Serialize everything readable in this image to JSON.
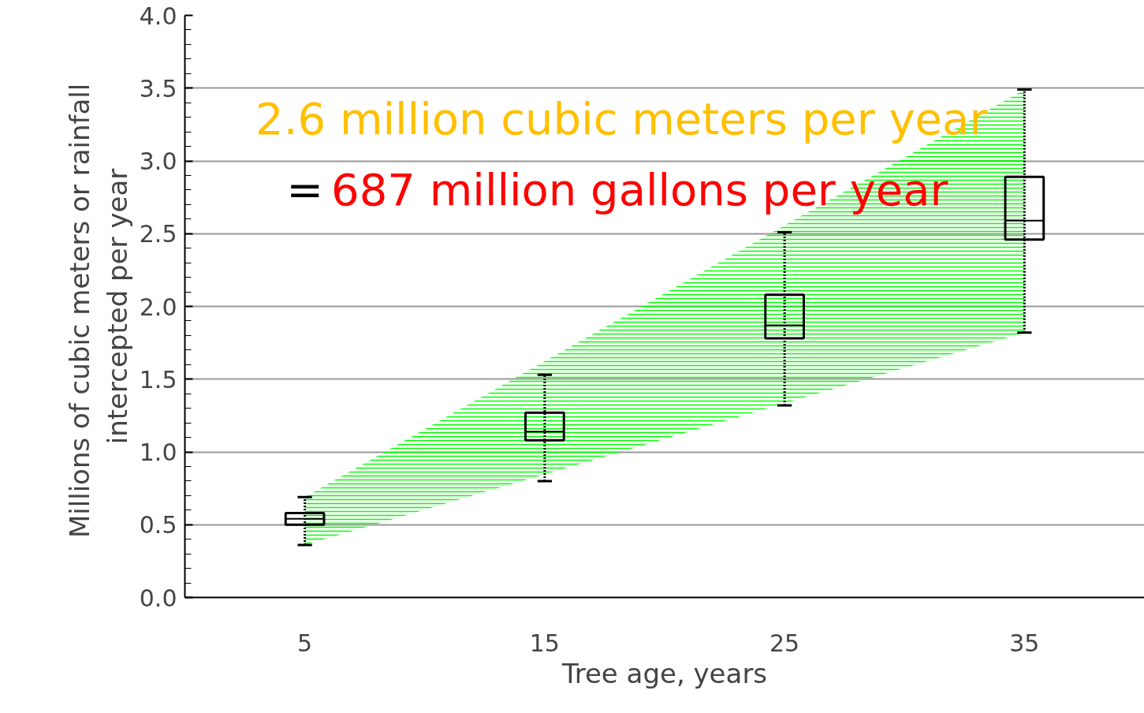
{
  "chart_data": {
    "type": "box",
    "xlabel": "Tree age, years",
    "ylabel": "Millions of cubic meters  or rainfall\nintercepted per year",
    "x": [
      5,
      15,
      25,
      35
    ],
    "xlim": [
      0,
      40
    ],
    "xticks": [
      5,
      15,
      25,
      35
    ],
    "ylim": [
      0,
      4
    ],
    "yticks": [
      {
        "value": 0,
        "label": "0.0"
      },
      {
        "value": 0.5,
        "label": "0.5"
      },
      {
        "value": 1,
        "label": "1.0"
      },
      {
        "value": 1.5,
        "label": "1.5"
      },
      {
        "value": 2,
        "label": "2.0"
      },
      {
        "value": 2.5,
        "label": "2.5"
      },
      {
        "value": 3,
        "label": "3.0"
      },
      {
        "value": 3.5,
        "label": "3.5"
      },
      {
        "value": 4,
        "label": "4.0"
      }
    ],
    "grid": "y",
    "series": [
      {
        "type": "line",
        "color": "#00ff00",
        "x": [
          5,
          35
        ],
        "values": [
          null,
          null
        ],
        "lower": [
          0.36,
          1.82
        ],
        "upper": [
          0.69,
          3.49
        ]
      },
      {
        "color": "#000000",
        "boxes": [
          {
            "low": 0.36,
            "q1": 0.5,
            "median": 0.54,
            "q3": 0.58,
            "high": 0.69
          },
          {
            "low": 0.8,
            "q1": 1.08,
            "median": 1.14,
            "q3": 1.27,
            "high": 1.53
          },
          {
            "low": 1.32,
            "q1": 1.78,
            "median": 1.87,
            "q3": 2.08,
            "high": 2.51
          },
          {
            "low": 1.82,
            "q1": 2.46,
            "median": 2.59,
            "q3": 2.89,
            "high": 3.49
          }
        ]
      }
    ],
    "annotations": [
      "2.6 million cubic meters per year",
      "=",
      "687 million gallons per year"
    ]
  }
}
